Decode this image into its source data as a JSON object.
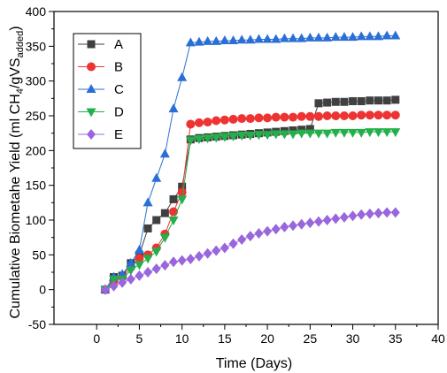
{
  "chart_data": {
    "type": "line",
    "title": "",
    "xlabel": "Time (Days)",
    "ylabel_parts": {
      "main": "Cumulative Biometahe Yield (ml CH",
      "sub1": "4",
      "mid": "/gVS",
      "sub2": "added",
      "end": ")"
    },
    "xlim": [
      -5,
      40
    ],
    "ylim": [
      -50,
      400
    ],
    "x_ticks": [
      0,
      5,
      10,
      15,
      20,
      25,
      30,
      35,
      40
    ],
    "y_ticks": [
      -50,
      0,
      50,
      100,
      150,
      200,
      250,
      300,
      350,
      400
    ],
    "grid": false,
    "legend_position": "upper-left",
    "series": [
      {
        "name": "A",
        "color": "#404040",
        "marker": "square",
        "x": [
          1,
          2,
          3,
          4,
          5,
          6,
          7,
          8,
          9,
          10,
          11,
          12,
          13,
          14,
          15,
          16,
          17,
          18,
          19,
          20,
          21,
          22,
          23,
          24,
          25,
          26,
          27,
          28,
          29,
          30,
          31,
          32,
          33,
          34,
          35
        ],
        "y": [
          0,
          18,
          20,
          38,
          50,
          88,
          100,
          110,
          130,
          148,
          216,
          218,
          219,
          220,
          221,
          222,
          223,
          224,
          225,
          226,
          227,
          228,
          229,
          230,
          231,
          268,
          269,
          270,
          270,
          271,
          271,
          272,
          272,
          272,
          273
        ]
      },
      {
        "name": "B",
        "color": "#ee3333",
        "marker": "circle",
        "x": [
          1,
          2,
          3,
          4,
          5,
          6,
          7,
          8,
          9,
          10,
          11,
          12,
          13,
          14,
          15,
          16,
          17,
          18,
          19,
          20,
          21,
          22,
          23,
          24,
          25,
          26,
          27,
          28,
          29,
          30,
          31,
          32,
          33,
          34,
          35
        ],
        "y": [
          0,
          12,
          18,
          32,
          45,
          50,
          60,
          80,
          112,
          140,
          238,
          240,
          241,
          243,
          244,
          245,
          246,
          246,
          247,
          247,
          248,
          248,
          248,
          249,
          249,
          249,
          250,
          250,
          250,
          250,
          251,
          251,
          251,
          251,
          251
        ]
      },
      {
        "name": "C",
        "color": "#2b6fd6",
        "marker": "triangle-up",
        "x": [
          1,
          2,
          3,
          4,
          5,
          6,
          7,
          8,
          9,
          10,
          11,
          12,
          13,
          14,
          15,
          16,
          17,
          18,
          19,
          20,
          21,
          22,
          23,
          24,
          25,
          26,
          27,
          28,
          29,
          30,
          31,
          32,
          33,
          34,
          35
        ],
        "y": [
          0,
          18,
          22,
          38,
          57,
          125,
          160,
          195,
          260,
          305,
          355,
          356,
          357,
          357,
          358,
          358,
          359,
          359,
          360,
          360,
          360,
          361,
          361,
          361,
          362,
          362,
          362,
          363,
          363,
          363,
          364,
          364,
          364,
          365,
          365
        ]
      },
      {
        "name": "D",
        "color": "#22b04b",
        "marker": "triangle-down",
        "x": [
          1,
          2,
          3,
          4,
          5,
          6,
          7,
          8,
          9,
          10,
          11,
          12,
          13,
          14,
          15,
          16,
          17,
          18,
          19,
          20,
          21,
          22,
          23,
          24,
          25,
          26,
          27,
          28,
          29,
          30,
          31,
          32,
          33,
          34,
          35
        ],
        "y": [
          0,
          15,
          15,
          28,
          36,
          45,
          55,
          75,
          100,
          130,
          215,
          217,
          218,
          219,
          220,
          221,
          222,
          222,
          223,
          223,
          224,
          224,
          224,
          225,
          225,
          225,
          225,
          226,
          226,
          226,
          226,
          227,
          227,
          227,
          227
        ]
      },
      {
        "name": "E",
        "color": "#9966dd",
        "marker": "diamond",
        "x": [
          1,
          2,
          3,
          4,
          5,
          6,
          7,
          8,
          9,
          10,
          11,
          12,
          13,
          14,
          15,
          16,
          17,
          18,
          19,
          20,
          21,
          22,
          23,
          24,
          25,
          26,
          27,
          28,
          29,
          30,
          31,
          32,
          33,
          34,
          35
        ],
        "y": [
          0,
          5,
          10,
          15,
          20,
          25,
          30,
          35,
          40,
          42,
          44,
          48,
          52,
          56,
          60,
          66,
          72,
          77,
          81,
          84,
          87,
          90,
          92,
          94,
          96,
          98,
          100,
          102,
          104,
          106,
          108,
          109,
          110,
          111,
          111
        ]
      }
    ]
  }
}
